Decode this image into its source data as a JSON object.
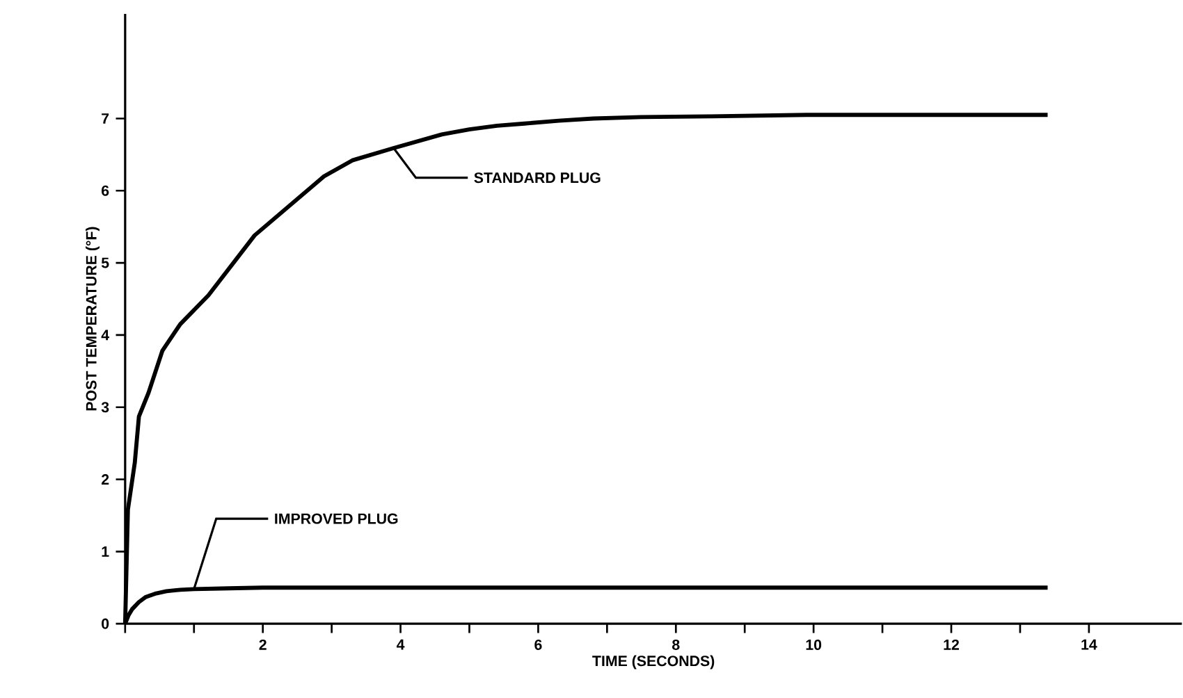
{
  "chart_data": {
    "type": "line",
    "xlabel": "TIME (SECONDS)",
    "ylabel": "POST TEMPERATURE (°F)",
    "x": [
      0,
      0.04,
      0.14,
      0.2,
      0.34,
      0.54,
      0.8,
      1.21,
      1.88,
      2.89,
      3.3,
      3.9,
      4.6,
      5.0,
      5.4,
      5.8,
      6.3,
      6.8,
      7.5,
      8.5,
      9.9,
      13.4
    ],
    "series": [
      {
        "name": "STANDARD PLUG",
        "color": "#000000",
        "values": [
          0,
          1.58,
          2.23,
          2.87,
          3.2,
          3.78,
          4.15,
          4.55,
          5.38,
          6.2,
          6.42,
          6.59,
          6.78,
          6.85,
          6.9,
          6.93,
          6.97,
          7.0,
          7.02,
          7.03,
          7.05,
          7.05
        ]
      },
      {
        "name": "IMPROVED PLUG",
        "color": "#000000",
        "x": [
          0,
          0.05,
          0.1,
          0.2,
          0.3,
          0.45,
          0.6,
          0.8,
          1,
          1.5,
          2,
          2.5,
          4,
          7,
          10,
          13.4
        ],
        "values": [
          0,
          0.12,
          0.2,
          0.3,
          0.37,
          0.42,
          0.45,
          0.47,
          0.48,
          0.49,
          0.5,
          0.5,
          0.5,
          0.5,
          0.5,
          0.5
        ]
      }
    ],
    "xlim": [
      0,
      15.35
    ],
    "ylim": [
      0,
      8.45
    ],
    "xticks": [
      {
        "value": 0,
        "label": null
      },
      {
        "value": 1,
        "label": null
      },
      2,
      {
        "value": 3,
        "label": null
      },
      4,
      {
        "value": 5,
        "label": null
      },
      6,
      {
        "value": 7,
        "label": null
      },
      8,
      {
        "value": 9,
        "label": null
      },
      10,
      {
        "value": 11,
        "label": null
      },
      12,
      {
        "value": 13,
        "label": null
      },
      14
    ],
    "yticks": [
      0,
      1,
      2,
      3,
      4,
      5,
      6,
      7
    ],
    "grid": false,
    "legend": false,
    "marker": "none",
    "line_style": "solid"
  }
}
